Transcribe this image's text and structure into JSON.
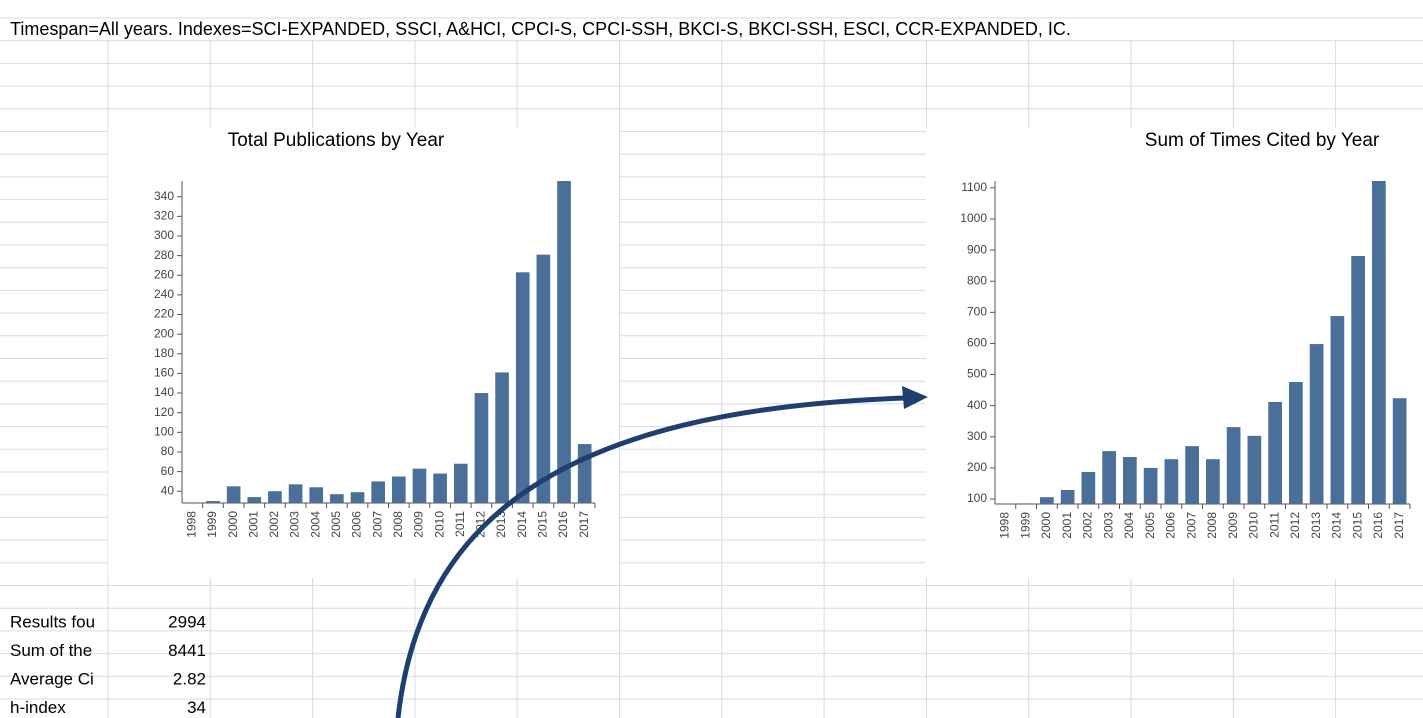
{
  "header": {
    "timespan": "Timespan=All years. Indexes=SCI-EXPANDED, SSCI, A&HCI, CPCI-S, CPCI-SSH, BKCI-S, BKCI-SSH, ESCI, CCR-EXPANDED, IC."
  },
  "chart_data": [
    {
      "type": "bar",
      "title": "Total Publications by Year",
      "color": "#4a6f99",
      "categories": [
        "1998",
        "1999",
        "2000",
        "2001",
        "2002",
        "2003",
        "2004",
        "2005",
        "2006",
        "2007",
        "2008",
        "2009",
        "2010",
        "2011",
        "2012",
        "2013",
        "2014",
        "2015",
        "2016",
        "2017"
      ],
      "values": [
        28,
        30,
        45,
        34,
        40,
        47,
        44,
        37,
        39,
        50,
        55,
        63,
        58,
        68,
        140,
        161,
        263,
        281,
        356,
        88
      ],
      "ylim": [
        28,
        356
      ],
      "yticks": [
        40,
        60,
        80,
        100,
        120,
        140,
        160,
        180,
        200,
        220,
        240,
        260,
        280,
        300,
        320,
        340
      ]
    },
    {
      "type": "bar",
      "title": "Sum of Times Cited by Year",
      "color": "#4a6f99",
      "categories": [
        "1998",
        "1999",
        "2000",
        "2001",
        "2002",
        "2003",
        "2004",
        "2005",
        "2006",
        "2007",
        "2008",
        "2009",
        "2010",
        "2011",
        "2012",
        "2013",
        "2014",
        "2015",
        "2016",
        "2017"
      ],
      "values": [
        84,
        86,
        106,
        129,
        187,
        254,
        235,
        200,
        228,
        270,
        228,
        331,
        303,
        412,
        476,
        598,
        688,
        881,
        1122,
        424
      ],
      "ylim": [
        84,
        1122
      ],
      "yticks": [
        100,
        200,
        300,
        400,
        500,
        600,
        700,
        800,
        900,
        1000,
        1100
      ]
    }
  ],
  "summary": {
    "rows": [
      [
        "Results fou",
        2994
      ],
      [
        "Sum of the",
        8441
      ],
      [
        "Average Ci",
        2.82
      ],
      [
        "h-index",
        34
      ]
    ]
  }
}
